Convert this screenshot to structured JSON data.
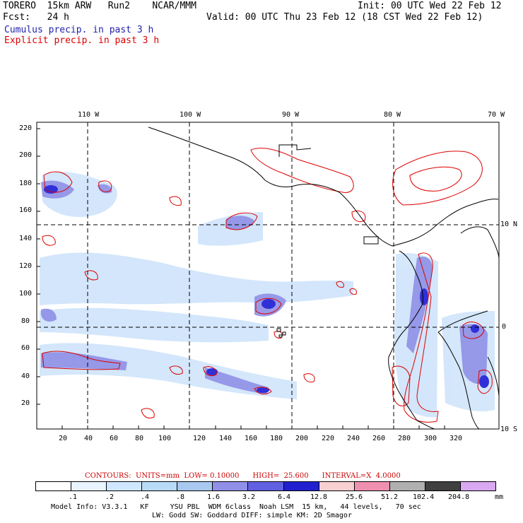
{
  "header": {
    "model": "TORERO  15km ARW   Run2    NCAR/MMM",
    "init": "Init: 00 UTC Wed 22 Feb 12",
    "fcst": "Fcst:   24 h",
    "valid": "Valid: 00 UTC Thu 23 Feb 12 (18 CST Wed 22 Feb 12)",
    "legend_cumulus": "Cumulus precip. in past 3 h",
    "legend_explicit": "Explicit precip. in past 3 h",
    "colors": {
      "cumulus": "#2222aa",
      "explicit": "#dd0000"
    }
  },
  "map": {
    "lon_labels": [
      "110 W",
      "100 W",
      "90 W",
      "80 W",
      "70 W"
    ],
    "lat_labels": [
      "10 N",
      "0",
      "10 S"
    ],
    "y_ticks": [
      "220",
      "200",
      "180",
      "160",
      "140",
      "120",
      "100",
      "80",
      "60",
      "40",
      "20"
    ],
    "x_ticks": [
      "20",
      "40",
      "60",
      "80",
      "100",
      "120",
      "140",
      "160",
      "180",
      "200",
      "220",
      "240",
      "260",
      "280",
      "300",
      "320"
    ]
  },
  "contours_line": "CONTOURS:  UNITS=mm  LOW= 0.10000      HIGH=  25.600      INTERVAL=X  4.0000",
  "colorbar": {
    "labels": [
      ".1",
      ".2",
      ".4",
      ".8",
      "1.6",
      "3.2",
      "6.4",
      "12.8",
      "25.6",
      "51.2",
      "102.4",
      "204.8"
    ],
    "unit": "mm",
    "colors": [
      "#ffffff",
      "#e8f4ff",
      "#d0e8ff",
      "#b8dcf8",
      "#a8c8f0",
      "#9090e8",
      "#6060e0",
      "#2020d0",
      "#f8d0d0",
      "#f090b0",
      "#b0b0b0",
      "#404040",
      "#d8a8f0"
    ]
  },
  "footer": {
    "line1": "Model Info: V3.3.1   KF     YSU PBL  WDM 6class  Noah LSM  15 km,   44 levels,   70 sec",
    "line2": "LW: Godd SW: Goddard DIFF: simple KM: 2D Smagor"
  }
}
